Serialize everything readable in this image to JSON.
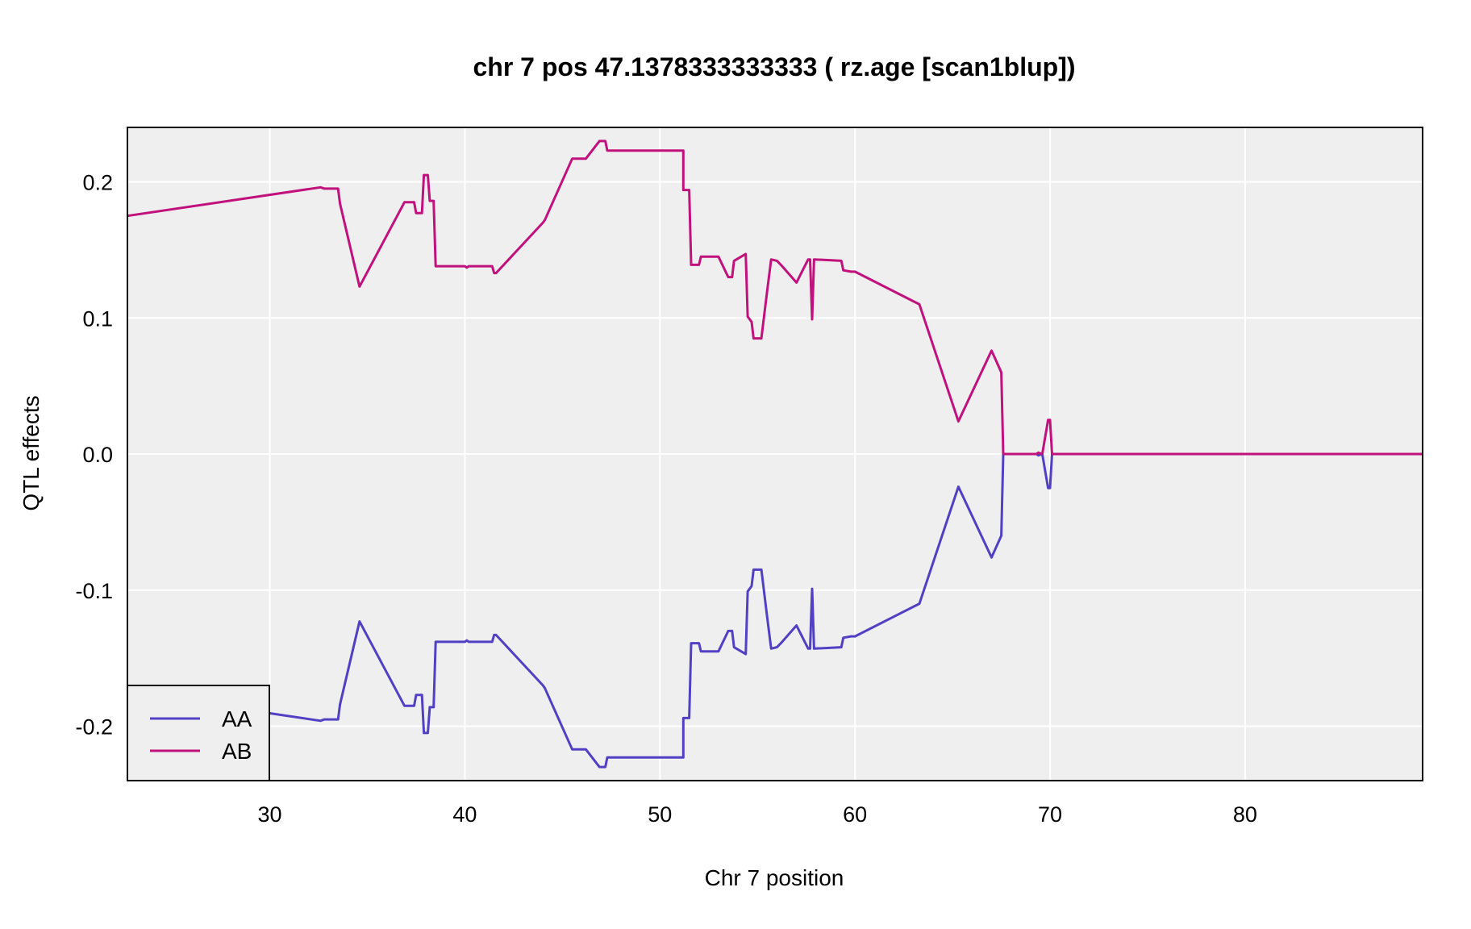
{
  "chart_data": {
    "type": "line",
    "title": "chr 7 pos 47.1378333333333 ( rz.age  [scan1blup])",
    "xlabel": "Chr 7 position",
    "ylabel": "QTL effects",
    "xlim": [
      22.7,
      89.1
    ],
    "ylim": [
      -0.24,
      0.24
    ],
    "x_ticks": [
      30,
      40,
      50,
      60,
      70,
      80
    ],
    "x_tick_labels": [
      "30",
      "40",
      "50",
      "60",
      "70",
      "80"
    ],
    "y_ticks": [
      -0.2,
      -0.1,
      0.0,
      0.1,
      0.2
    ],
    "y_tick_labels": [
      "-0.2",
      "-0.1",
      "0.0",
      "0.1",
      "0.2"
    ],
    "grid": true,
    "background": "#efefef",
    "legend_position": "bottom-left",
    "legend": [
      "AA",
      "AB"
    ],
    "series": [
      {
        "name": "AA",
        "color": "#5140c4",
        "points": [
          [
            22.7,
            -0.175
          ],
          [
            32.6,
            -0.196
          ],
          [
            32.8,
            -0.195
          ],
          [
            33.5,
            -0.195
          ],
          [
            33.6,
            -0.184
          ],
          [
            34.6,
            -0.123
          ],
          [
            36.9,
            -0.185
          ],
          [
            37.4,
            -0.185
          ],
          [
            37.5,
            -0.177
          ],
          [
            37.8,
            -0.177
          ],
          [
            37.9,
            -0.205
          ],
          [
            38.1,
            -0.205
          ],
          [
            38.2,
            -0.186
          ],
          [
            38.4,
            -0.186
          ],
          [
            38.5,
            -0.138
          ],
          [
            40.0,
            -0.138
          ],
          [
            40.1,
            -0.137
          ],
          [
            40.2,
            -0.138
          ],
          [
            41.4,
            -0.138
          ],
          [
            41.5,
            -0.133
          ],
          [
            41.6,
            -0.133
          ],
          [
            44.0,
            -0.17
          ],
          [
            44.1,
            -0.172
          ],
          [
            45.5,
            -0.217
          ],
          [
            46.2,
            -0.217
          ],
          [
            46.9,
            -0.23
          ],
          [
            47.2,
            -0.23
          ],
          [
            47.3,
            -0.223
          ],
          [
            51.2,
            -0.223
          ],
          [
            51.2,
            -0.194
          ],
          [
            51.5,
            -0.194
          ],
          [
            51.6,
            -0.139
          ],
          [
            52.0,
            -0.139
          ],
          [
            52.1,
            -0.145
          ],
          [
            53.0,
            -0.145
          ],
          [
            53.5,
            -0.13
          ],
          [
            53.7,
            -0.13
          ],
          [
            53.8,
            -0.142
          ],
          [
            54.4,
            -0.147
          ],
          [
            54.5,
            -0.101
          ],
          [
            54.7,
            -0.097
          ],
          [
            54.8,
            -0.085
          ],
          [
            55.2,
            -0.085
          ],
          [
            55.5,
            -0.12
          ],
          [
            55.7,
            -0.143
          ],
          [
            56.0,
            -0.142
          ],
          [
            56.2,
            -0.139
          ],
          [
            57.0,
            -0.126
          ],
          [
            57.6,
            -0.143
          ],
          [
            57.7,
            -0.143
          ],
          [
            57.8,
            -0.099
          ],
          [
            57.9,
            -0.143
          ],
          [
            59.3,
            -0.142
          ],
          [
            59.4,
            -0.135
          ],
          [
            59.8,
            -0.134
          ],
          [
            60.0,
            -0.134
          ],
          [
            63.3,
            -0.11
          ],
          [
            65.3,
            -0.024
          ],
          [
            67.0,
            -0.076
          ],
          [
            67.5,
            -0.06
          ],
          [
            67.6,
            0.0
          ],
          [
            69.3,
            0.0
          ],
          [
            69.4,
            -0.001
          ],
          [
            69.6,
            0.0
          ],
          [
            69.9,
            -0.025
          ],
          [
            70.0,
            -0.025
          ],
          [
            70.1,
            0.0
          ],
          [
            89.1,
            0.0
          ]
        ]
      },
      {
        "name": "AB",
        "color": "#c0117c",
        "points": [
          [
            22.7,
            0.175
          ],
          [
            32.6,
            0.196
          ],
          [
            32.8,
            0.195
          ],
          [
            33.5,
            0.195
          ],
          [
            33.6,
            0.184
          ],
          [
            34.6,
            0.123
          ],
          [
            36.9,
            0.185
          ],
          [
            37.4,
            0.185
          ],
          [
            37.5,
            0.177
          ],
          [
            37.8,
            0.177
          ],
          [
            37.9,
            0.205
          ],
          [
            38.1,
            0.205
          ],
          [
            38.2,
            0.186
          ],
          [
            38.4,
            0.186
          ],
          [
            38.5,
            0.138
          ],
          [
            40.0,
            0.138
          ],
          [
            40.1,
            0.137
          ],
          [
            40.2,
            0.138
          ],
          [
            41.4,
            0.138
          ],
          [
            41.5,
            0.133
          ],
          [
            41.6,
            0.133
          ],
          [
            44.0,
            0.17
          ],
          [
            44.1,
            0.172
          ],
          [
            45.5,
            0.217
          ],
          [
            46.2,
            0.217
          ],
          [
            46.9,
            0.23
          ],
          [
            47.2,
            0.23
          ],
          [
            47.3,
            0.223
          ],
          [
            51.2,
            0.223
          ],
          [
            51.2,
            0.194
          ],
          [
            51.5,
            0.194
          ],
          [
            51.6,
            0.139
          ],
          [
            52.0,
            0.139
          ],
          [
            52.1,
            0.145
          ],
          [
            53.0,
            0.145
          ],
          [
            53.5,
            0.13
          ],
          [
            53.7,
            0.13
          ],
          [
            53.8,
            0.142
          ],
          [
            54.4,
            0.147
          ],
          [
            54.5,
            0.101
          ],
          [
            54.7,
            0.097
          ],
          [
            54.8,
            0.085
          ],
          [
            55.2,
            0.085
          ],
          [
            55.5,
            0.12
          ],
          [
            55.7,
            0.143
          ],
          [
            56.0,
            0.142
          ],
          [
            56.2,
            0.139
          ],
          [
            57.0,
            0.126
          ],
          [
            57.6,
            0.143
          ],
          [
            57.7,
            0.143
          ],
          [
            57.8,
            0.099
          ],
          [
            57.9,
            0.143
          ],
          [
            59.3,
            0.142
          ],
          [
            59.4,
            0.135
          ],
          [
            59.8,
            0.134
          ],
          [
            60.0,
            0.134
          ],
          [
            63.3,
            0.11
          ],
          [
            65.3,
            0.024
          ],
          [
            67.0,
            0.076
          ],
          [
            67.5,
            0.06
          ],
          [
            67.6,
            0.0
          ],
          [
            69.3,
            0.0
          ],
          [
            69.4,
            0.001
          ],
          [
            69.6,
            0.0
          ],
          [
            69.9,
            0.025
          ],
          [
            70.0,
            0.025
          ],
          [
            70.1,
            0.0
          ],
          [
            89.1,
            0.0
          ]
        ]
      }
    ]
  }
}
